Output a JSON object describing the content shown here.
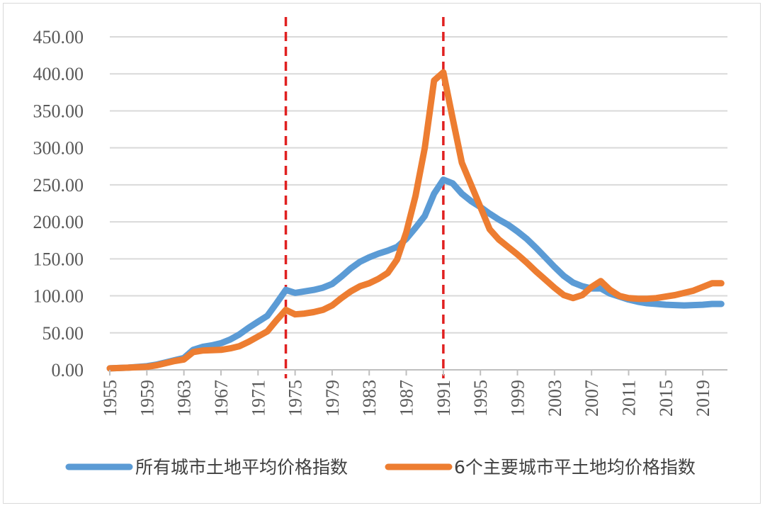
{
  "chart_data": {
    "type": "line",
    "title": "",
    "xlabel": "",
    "ylabel": "",
    "x_tick_labels": [
      "1955",
      "1959",
      "1963",
      "1967",
      "1971",
      "1975",
      "1979",
      "1983",
      "1987",
      "1991",
      "1995",
      "1999",
      "2003",
      "2007",
      "2011",
      "2015",
      "2019"
    ],
    "y_tick_labels": [
      "0.00",
      "50.00",
      "100.00",
      "150.00",
      "200.00",
      "250.00",
      "300.00",
      "350.00",
      "400.00",
      "450.00"
    ],
    "xlim": [
      1955,
      2021
    ],
    "ylim": [
      0,
      450
    ],
    "grid": true,
    "legend_position": "bottom",
    "reference_lines": [
      {
        "x": 1974,
        "color": "#e02020",
        "style": "dashed"
      },
      {
        "x": 1991,
        "color": "#e02020",
        "style": "dashed"
      }
    ],
    "series": [
      {
        "name": "所有城市土地平均价格指数",
        "color": "#5b9bd5",
        "points": [
          [
            1955,
            2
          ],
          [
            1956,
            2.5
          ],
          [
            1957,
            3
          ],
          [
            1958,
            4
          ],
          [
            1959,
            5
          ],
          [
            1960,
            7
          ],
          [
            1961,
            10
          ],
          [
            1962,
            13
          ],
          [
            1963,
            16
          ],
          [
            1964,
            27
          ],
          [
            1965,
            31
          ],
          [
            1966,
            33
          ],
          [
            1967,
            36
          ],
          [
            1968,
            41
          ],
          [
            1969,
            48
          ],
          [
            1970,
            57
          ],
          [
            1971,
            65
          ],
          [
            1972,
            73
          ],
          [
            1973,
            90
          ],
          [
            1974,
            108
          ],
          [
            1975,
            104
          ],
          [
            1976,
            106
          ],
          [
            1977,
            108
          ],
          [
            1978,
            111
          ],
          [
            1979,
            116
          ],
          [
            1980,
            126
          ],
          [
            1981,
            137
          ],
          [
            1982,
            146
          ],
          [
            1983,
            152
          ],
          [
            1984,
            157
          ],
          [
            1985,
            161
          ],
          [
            1986,
            166
          ],
          [
            1987,
            177
          ],
          [
            1988,
            192
          ],
          [
            1989,
            208
          ],
          [
            1990,
            238
          ],
          [
            1991,
            257
          ],
          [
            1992,
            252
          ],
          [
            1993,
            238
          ],
          [
            1994,
            228
          ],
          [
            1995,
            220
          ],
          [
            1996,
            211
          ],
          [
            1997,
            203
          ],
          [
            1998,
            196
          ],
          [
            1999,
            187
          ],
          [
            2000,
            177
          ],
          [
            2001,
            165
          ],
          [
            2002,
            152
          ],
          [
            2003,
            139
          ],
          [
            2004,
            127
          ],
          [
            2005,
            118
          ],
          [
            2006,
            113
          ],
          [
            2007,
            110
          ],
          [
            2008,
            110
          ],
          [
            2009,
            103
          ],
          [
            2010,
            99
          ],
          [
            2011,
            95
          ],
          [
            2012,
            92
          ],
          [
            2013,
            90
          ],
          [
            2014,
            89
          ],
          [
            2015,
            88
          ],
          [
            2016,
            87.5
          ],
          [
            2017,
            87
          ],
          [
            2018,
            87.5
          ],
          [
            2019,
            88
          ],
          [
            2020,
            89
          ],
          [
            2021,
            89
          ]
        ]
      },
      {
        "name": "6个主要城市平土地均价格指数",
        "color": "#ed7d31",
        "points": [
          [
            1955,
            2
          ],
          [
            1956,
            2.5
          ],
          [
            1957,
            3
          ],
          [
            1958,
            3.5
          ],
          [
            1959,
            4
          ],
          [
            1960,
            6
          ],
          [
            1961,
            9
          ],
          [
            1962,
            12
          ],
          [
            1963,
            14
          ],
          [
            1964,
            24
          ],
          [
            1965,
            26
          ],
          [
            1966,
            26.5
          ],
          [
            1967,
            27
          ],
          [
            1968,
            29
          ],
          [
            1969,
            32
          ],
          [
            1970,
            38
          ],
          [
            1971,
            45
          ],
          [
            1972,
            52
          ],
          [
            1973,
            67
          ],
          [
            1974,
            81
          ],
          [
            1975,
            75
          ],
          [
            1976,
            76
          ],
          [
            1977,
            78
          ],
          [
            1978,
            81
          ],
          [
            1979,
            87
          ],
          [
            1980,
            97
          ],
          [
            1981,
            106
          ],
          [
            1982,
            113
          ],
          [
            1983,
            117
          ],
          [
            1984,
            123
          ],
          [
            1985,
            131
          ],
          [
            1986,
            149
          ],
          [
            1987,
            186
          ],
          [
            1988,
            235
          ],
          [
            1989,
            300
          ],
          [
            1990,
            391
          ],
          [
            1991,
            402
          ],
          [
            1992,
            340
          ],
          [
            1993,
            280
          ],
          [
            1994,
            250
          ],
          [
            1995,
            220
          ],
          [
            1996,
            190
          ],
          [
            1997,
            176
          ],
          [
            1998,
            166
          ],
          [
            1999,
            156
          ],
          [
            2000,
            145
          ],
          [
            2001,
            133
          ],
          [
            2002,
            122
          ],
          [
            2003,
            111
          ],
          [
            2004,
            101
          ],
          [
            2005,
            97
          ],
          [
            2006,
            101
          ],
          [
            2007,
            112
          ],
          [
            2008,
            120
          ],
          [
            2009,
            108
          ],
          [
            2010,
            100
          ],
          [
            2011,
            97
          ],
          [
            2012,
            96
          ],
          [
            2013,
            96
          ],
          [
            2014,
            97
          ],
          [
            2015,
            99
          ],
          [
            2016,
            101
          ],
          [
            2017,
            104
          ],
          [
            2018,
            107
          ],
          [
            2019,
            112
          ],
          [
            2020,
            117
          ],
          [
            2021,
            117
          ]
        ]
      }
    ]
  }
}
